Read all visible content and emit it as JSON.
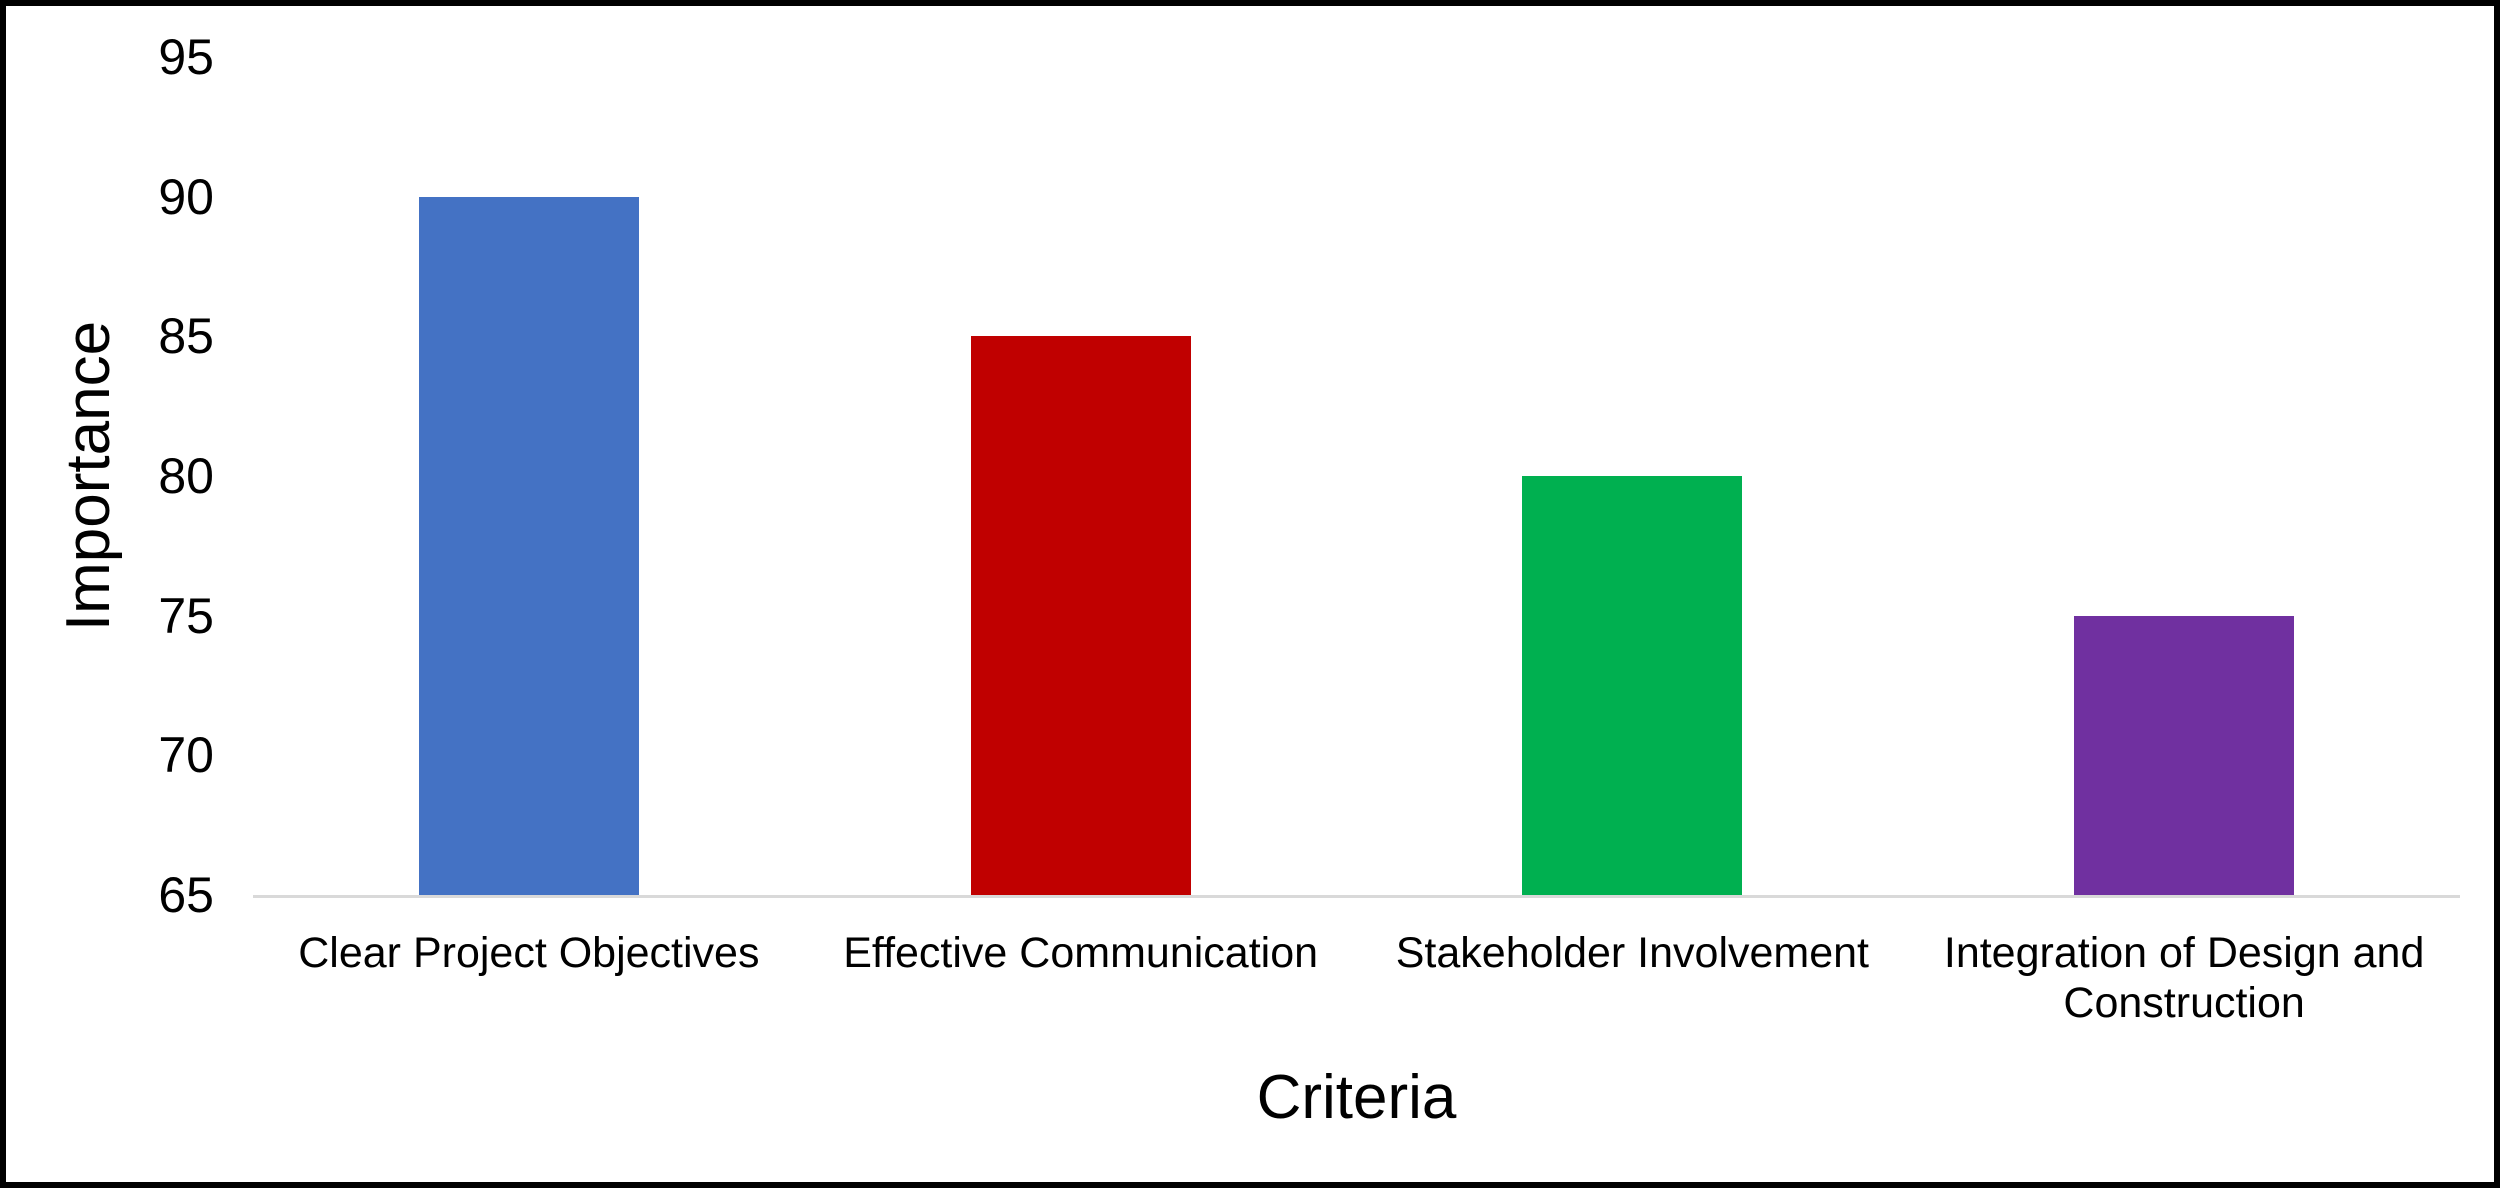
{
  "chart_data": {
    "type": "bar",
    "title": "",
    "xlabel": "Criteria",
    "ylabel": "Importance",
    "categories": [
      "Clear Project Objectives",
      "Effective Communication",
      "Stakeholder Involvement",
      "Integration of Design and Construction"
    ],
    "values": [
      90,
      85,
      80,
      75
    ],
    "bar_colors": [
      "#4472C4",
      "#C00000",
      "#00B050",
      "#7030A0"
    ],
    "ylim": [
      65,
      95
    ],
    "yticks": [
      65,
      70,
      75,
      80,
      85,
      90,
      95
    ],
    "grid": "off",
    "legend": "none",
    "axis_line_color": "#D9D9D9",
    "text_color": "#000000",
    "frame_color": "#000000",
    "background_color": "#FFFFFF"
  }
}
